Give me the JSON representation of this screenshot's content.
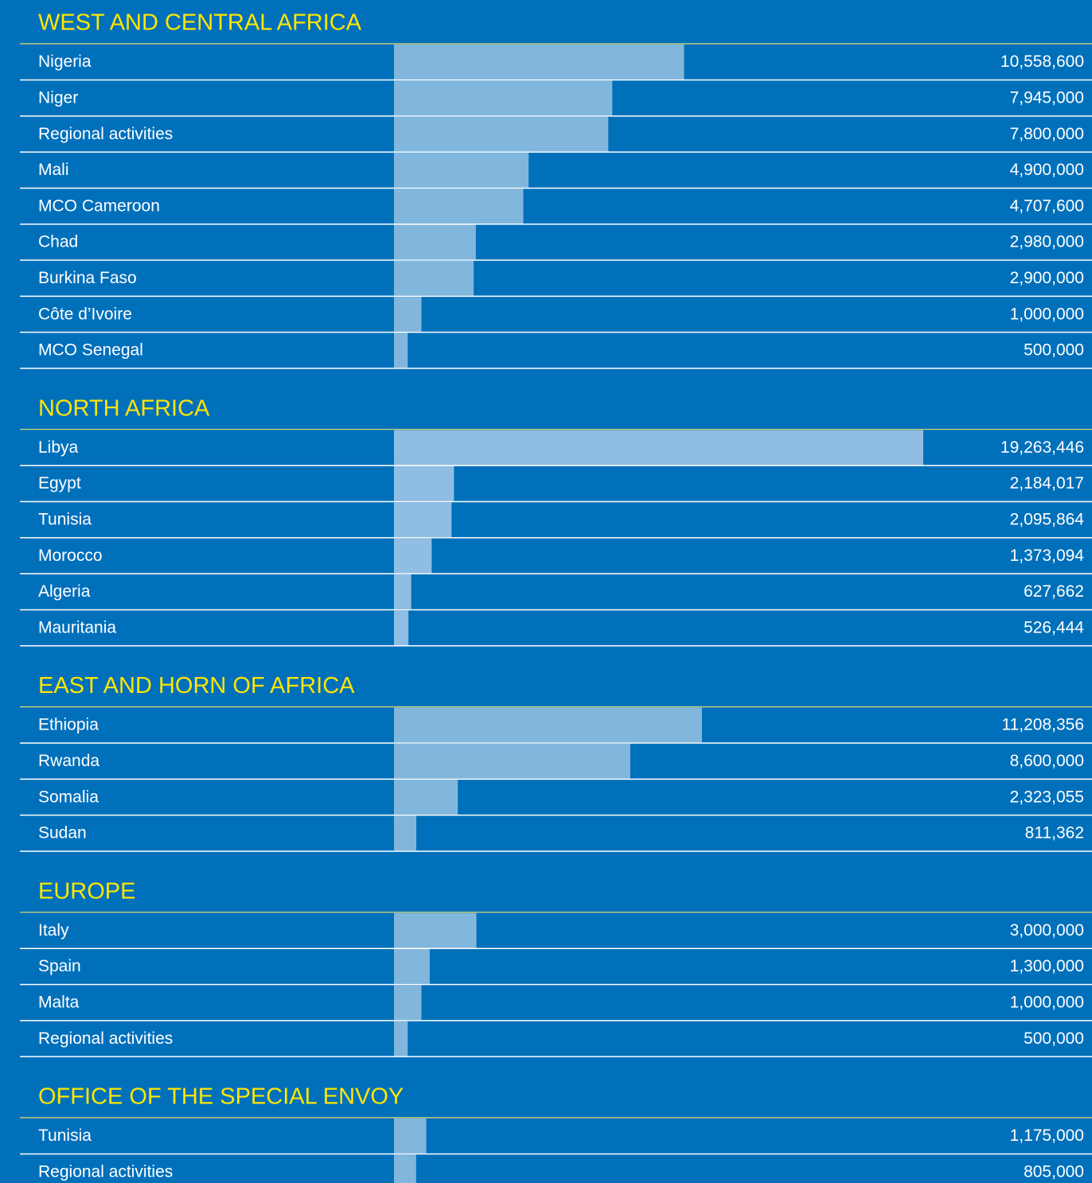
{
  "chart_data": [
    {
      "type": "bar",
      "title": "WEST AND CENTRAL AFRICA",
      "color": "#82b7dd",
      "categories": [
        "Nigeria",
        "Niger",
        "Regional activities",
        "Mali",
        "MCO Cameroon",
        "Chad",
        "Burkina Faso",
        "Côte d’Ivoire",
        "MCO Senegal"
      ],
      "values": [
        10558600,
        7945000,
        7800000,
        4900000,
        4707600,
        2980000,
        2900000,
        1000000,
        500000
      ],
      "value_labels": [
        "10,558,600",
        "7,945,000",
        "7,800,000",
        "4,900,000",
        "4,707,600",
        "2,980,000",
        "2,900,000",
        "1,000,000",
        "500,000"
      ]
    },
    {
      "type": "bar",
      "title": "NORTH AFRICA",
      "color": "#8fbde3",
      "categories": [
        "Libya",
        "Egypt",
        "Tunisia",
        "Morocco",
        "Algeria",
        "Mauritania"
      ],
      "values": [
        19263446,
        2184017,
        2095864,
        1373094,
        627662,
        526444
      ],
      "value_labels": [
        "19,263,446",
        "2,184,017",
        "2,095,864",
        "1,373,094",
        "627,662",
        "526,444"
      ]
    },
    {
      "type": "bar",
      "title": "EAST AND HORN OF AFRICA",
      "color": "#82b7dd",
      "categories": [
        "Ethiopia",
        "Rwanda",
        "Somalia",
        "Sudan"
      ],
      "values": [
        11208356,
        8600000,
        2323055,
        811362
      ],
      "value_labels": [
        "11,208,356",
        "8,600,000",
        "2,323,055",
        "811,362"
      ]
    },
    {
      "type": "bar",
      "title": "EUROPE",
      "color": "#82b7dd",
      "categories": [
        "Italy",
        "Spain",
        "Malta",
        "Regional activities"
      ],
      "values": [
        3000000,
        1300000,
        1000000,
        500000
      ],
      "value_labels": [
        "3,000,000",
        "1,300,000",
        "1,000,000",
        "500,000"
      ]
    },
    {
      "type": "bar",
      "title": "OFFICE OF THE SPECIAL ENVOY",
      "color": "#82b7dd",
      "categories": [
        "Tunisia",
        "Regional activities"
      ],
      "values": [
        1175000,
        805000
      ],
      "value_labels": [
        "1,175,000",
        "805,000"
      ]
    }
  ]
}
